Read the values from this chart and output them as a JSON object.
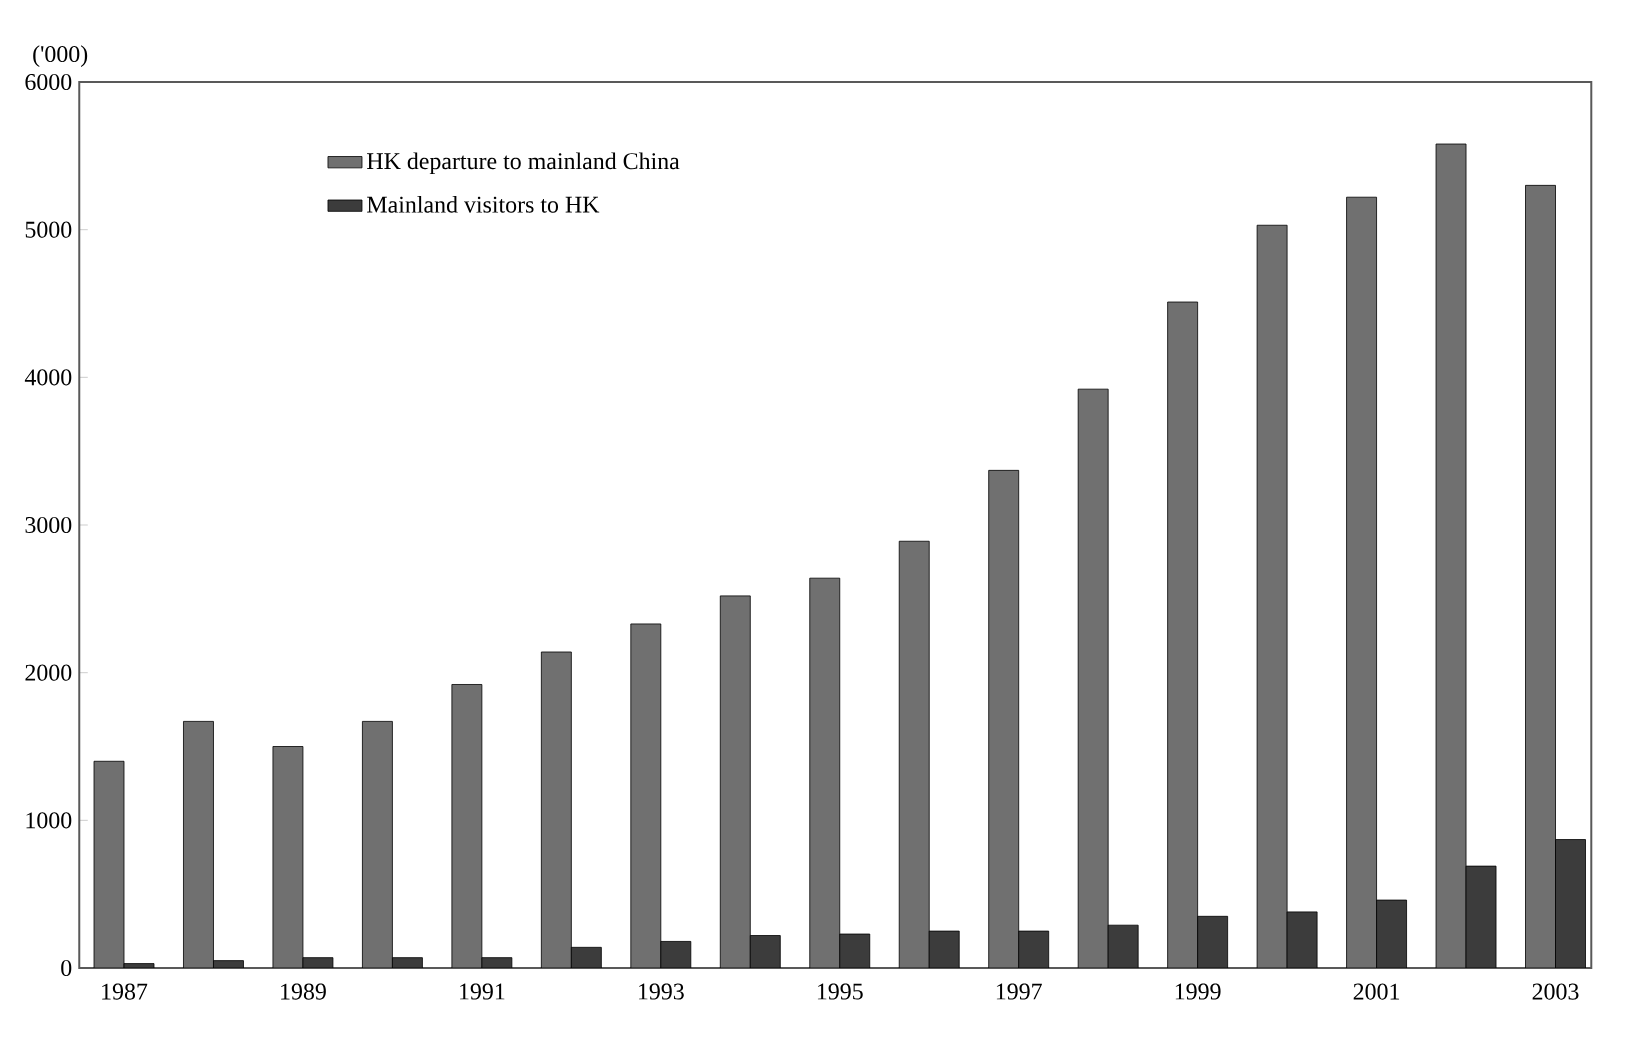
{
  "chart_data": {
    "type": "bar",
    "ylabel": "('000)",
    "categories": [
      "1987",
      null,
      "1989",
      null,
      "1991",
      null,
      "1993",
      null,
      "1995",
      null,
      "1997",
      null,
      "1999",
      null,
      "2001",
      null,
      "2003"
    ],
    "series": [
      {
        "name": "HK departure to mainland China",
        "color": "#707070",
        "values": [
          1400,
          1670,
          1500,
          1670,
          1920,
          2140,
          2330,
          2520,
          2640,
          2890,
          3370,
          3920,
          4510,
          5030,
          5220,
          5580,
          5300
        ]
      },
      {
        "name": "Mainland visitors to HK",
        "color": "#3c3c3c",
        "values": [
          30,
          50,
          70,
          70,
          70,
          140,
          180,
          220,
          230,
          250,
          250,
          290,
          350,
          380,
          460,
          690,
          870
        ]
      }
    ],
    "ylim": [
      0,
      6000
    ],
    "yticks": [
      0,
      1000,
      2000,
      3000,
      4000,
      5000,
      6000
    ],
    "grid": false,
    "legend": "top left"
  }
}
